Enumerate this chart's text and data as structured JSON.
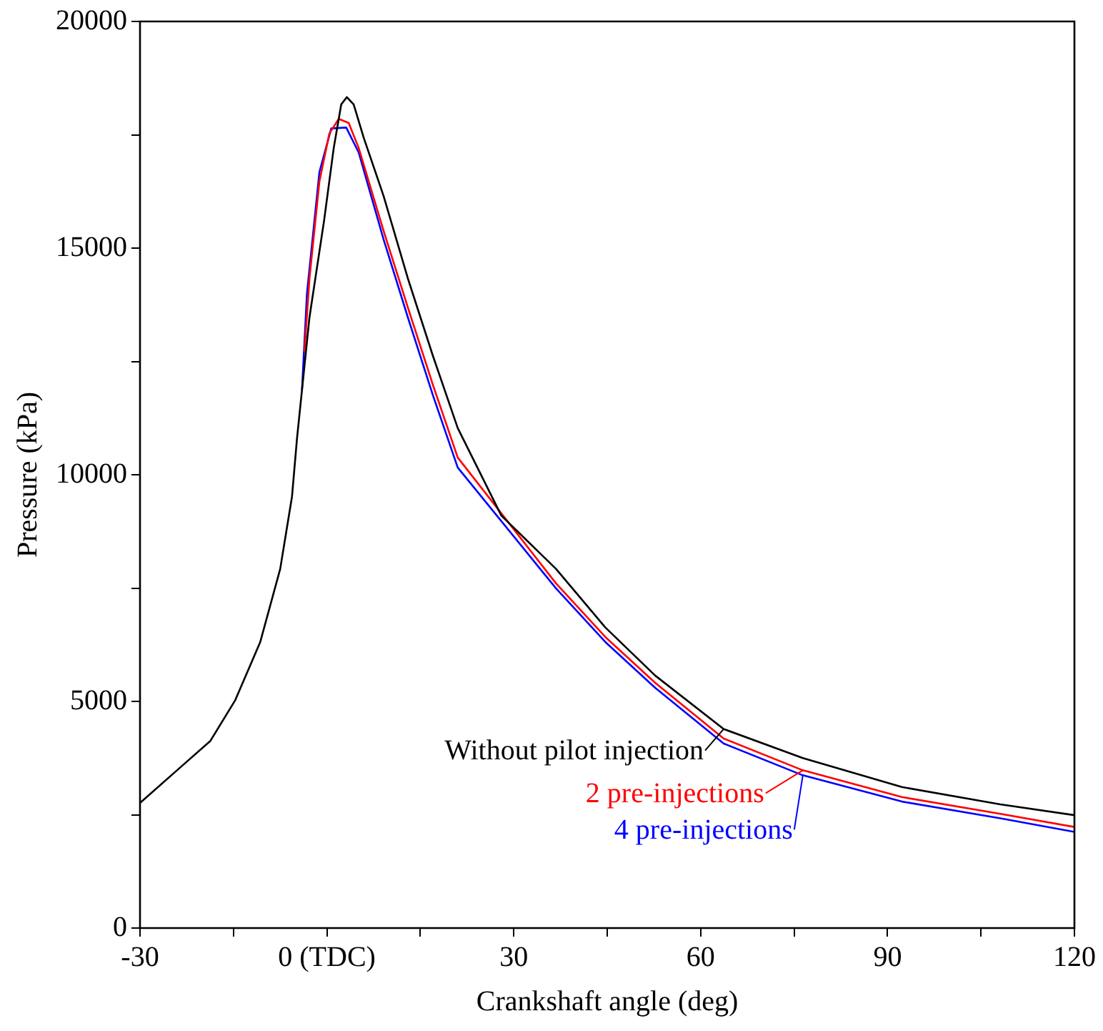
{
  "chart_data": {
    "type": "line",
    "xlabel": "Crankshaft angle (deg)",
    "ylabel": "Pressure (kPa)",
    "xlim": [
      -30,
      120
    ],
    "xticks": [
      -30,
      {
        "value": -15,
        "label": null
      },
      {
        "value": 0,
        "label": "0 (TDC)"
      },
      {
        "value": 15,
        "label": null
      },
      30,
      {
        "value": 45,
        "label": null
      },
      60,
      {
        "value": 75,
        "label": null
      },
      90,
      {
        "value": 105,
        "label": null
      },
      120
    ],
    "ylim": [
      0,
      20000
    ],
    "yticks": [
      0,
      {
        "value": 2500,
        "label": null
      },
      5000,
      {
        "value": 7500,
        "label": null
      },
      10000,
      {
        "value": 12500,
        "label": null
      },
      15000,
      {
        "value": 17500,
        "label": null
      },
      20000
    ],
    "grid": false,
    "legend": "bottom right",
    "marker": "none",
    "line_style": "solid",
    "series": [
      {
        "name": "Without pilot injection",
        "color": "#000000",
        "x": [
          -30,
          -18.7,
          -14.7,
          -10.7,
          -7.5,
          -5.6,
          -4.8,
          -2.8,
          -0.45,
          1.1,
          2.3,
          3.2,
          4.3,
          5.9,
          9.1,
          13,
          17,
          21,
          28,
          36.8,
          44.7,
          52.7,
          63.7,
          76.4,
          92.3,
          108.1,
          120
        ],
        "values": [
          2760,
          4130,
          5030,
          6310,
          7920,
          9520,
          10800,
          13470,
          15610,
          17210,
          18170,
          18330,
          18170,
          17440,
          16150,
          14330,
          12630,
          11030,
          9100,
          7920,
          6630,
          5570,
          4390,
          3750,
          3110,
          2730,
          2490
        ]
      },
      {
        "name": "2 pre-injections",
        "color": "#ff0000",
        "x": [
          -3.6,
          -2.8,
          -1.2,
          0.4,
          1.9,
          3.5,
          5.1,
          9.1,
          13,
          17,
          21,
          36.8,
          44.7,
          52.7,
          63.7,
          76.4,
          92.3,
          108.1,
          120
        ],
        "values": [
          12720,
          14330,
          16470,
          17530,
          17850,
          17760,
          17210,
          15380,
          13690,
          11990,
          10380,
          7600,
          6420,
          5410,
          4180,
          3480,
          2890,
          2520,
          2230
        ]
      },
      {
        "name": "4 pre-injections",
        "color": "#0000ff",
        "x": [
          -4,
          -3.2,
          -1.2,
          0.7,
          3.1,
          5.1,
          9.1,
          13,
          17,
          21,
          36.8,
          44.7,
          52.7,
          63.7,
          76.4,
          92.3,
          108.1,
          120
        ],
        "values": [
          11870,
          14000,
          16680,
          17640,
          17660,
          17110,
          15190,
          13470,
          11760,
          10160,
          7490,
          6310,
          5300,
          4070,
          3370,
          2790,
          2420,
          2120
        ]
      }
    ]
  }
}
